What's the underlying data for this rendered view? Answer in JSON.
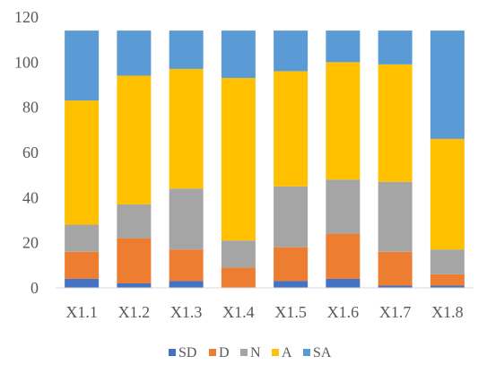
{
  "chart_data": {
    "type": "bar",
    "stacked": true,
    "categories": [
      "X1.1",
      "X1.2",
      "X1.3",
      "X1.4",
      "X1.5",
      "X1.6",
      "X1.7",
      "X1.8"
    ],
    "series": [
      {
        "name": "SD",
        "color": "#4472C4",
        "values": [
          4,
          2,
          3,
          0,
          3,
          4,
          1,
          1
        ]
      },
      {
        "name": "D",
        "color": "#ED7D31",
        "values": [
          12,
          20,
          14,
          9,
          15,
          20,
          15,
          5
        ]
      },
      {
        "name": "N",
        "color": "#A5A5A5",
        "values": [
          12,
          15,
          27,
          12,
          27,
          24,
          31,
          11
        ]
      },
      {
        "name": "A",
        "color": "#FFC000",
        "values": [
          55,
          57,
          53,
          72,
          51,
          52,
          52,
          49
        ]
      },
      {
        "name": "SA",
        "color": "#5B9BD5",
        "values": [
          31,
          20,
          17,
          21,
          18,
          14,
          15,
          48
        ]
      }
    ],
    "ylim": [
      0,
      120
    ],
    "yticks": [
      0,
      20,
      40,
      60,
      80,
      100,
      120
    ],
    "grid": false,
    "legend": "bottom",
    "title": "",
    "xlabel": "",
    "ylabel": ""
  }
}
